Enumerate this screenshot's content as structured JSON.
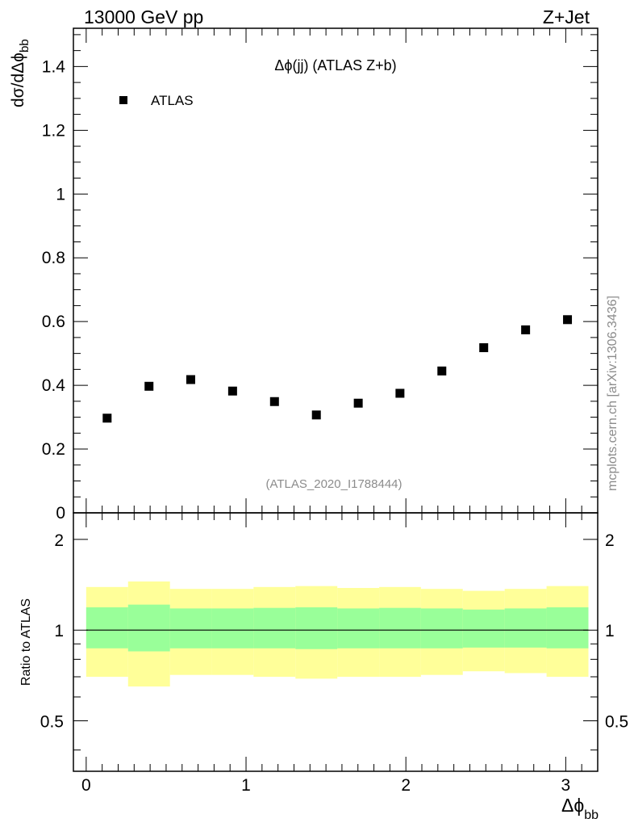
{
  "header": {
    "left": "13000 GeV pp",
    "right": "Z+Jet"
  },
  "side_text": "mcplots.cern.ch [arXiv:1306.3436]",
  "chart_data": [
    {
      "type": "scatter",
      "title": "Δϕ(jj) (ATLAS Z+b)",
      "analysis": "(ATLAS_2020_I1788444)",
      "ylabel": "dσ/dΔϕ",
      "ylabel_sub": "bb",
      "xlim": [
        -0.08,
        3.2
      ],
      "ylim": [
        0,
        1.52
      ],
      "y_ticks": [
        0,
        0.2,
        0.4,
        0.6,
        0.8,
        1,
        1.2,
        1.4
      ],
      "y_tick_labels": [
        "0",
        "0.2",
        "0.4",
        "0.6",
        "0.8",
        "1",
        "1.2",
        "1.4"
      ],
      "legend": {
        "position": "top-left",
        "entries": [
          "ATLAS"
        ]
      },
      "series": [
        {
          "name": "ATLAS",
          "marker": "square",
          "color": "#000000",
          "x": [
            0.131,
            0.393,
            0.654,
            0.916,
            1.178,
            1.44,
            1.702,
            1.963,
            2.225,
            2.487,
            2.749,
            3.011
          ],
          "y": [
            0.297,
            0.397,
            0.418,
            0.382,
            0.349,
            0.307,
            0.344,
            0.375,
            0.445,
            0.518,
            0.574,
            0.606
          ]
        }
      ]
    },
    {
      "type": "area",
      "ylabel": "Ratio to ATLAS",
      "xlabel": "Δϕ",
      "xlabel_sub": "bb",
      "xlim": [
        -0.08,
        3.2
      ],
      "ylim": [
        0.34,
        2.45
      ],
      "y_scale": "log",
      "x_ticks": [
        0,
        1,
        2,
        3
      ],
      "x_tick_labels": [
        "0",
        "1",
        "2",
        "3"
      ],
      "y_ticks": [
        0.5,
        1,
        2
      ],
      "y_tick_labels": [
        "0.5",
        "1",
        "2"
      ],
      "reference_line": 1,
      "bins": {
        "edges": [
          0,
          0.262,
          0.524,
          0.785,
          1.047,
          1.309,
          1.571,
          1.833,
          2.094,
          2.356,
          2.618,
          2.88,
          3.142
        ],
        "inner_low": [
          0.87,
          0.85,
          0.87,
          0.87,
          0.87,
          0.865,
          0.87,
          0.87,
          0.87,
          0.875,
          0.875,
          0.87
        ],
        "inner_high": [
          1.19,
          1.215,
          1.18,
          1.18,
          1.185,
          1.19,
          1.18,
          1.185,
          1.18,
          1.17,
          1.18,
          1.19
        ],
        "outer_low": [
          0.7,
          0.65,
          0.71,
          0.71,
          0.7,
          0.69,
          0.7,
          0.7,
          0.71,
          0.73,
          0.72,
          0.7
        ],
        "outer_high": [
          1.39,
          1.45,
          1.37,
          1.37,
          1.39,
          1.4,
          1.38,
          1.39,
          1.37,
          1.35,
          1.37,
          1.4
        ]
      },
      "colors": {
        "inner": "#99ff99",
        "outer": "#ffff99"
      }
    }
  ]
}
